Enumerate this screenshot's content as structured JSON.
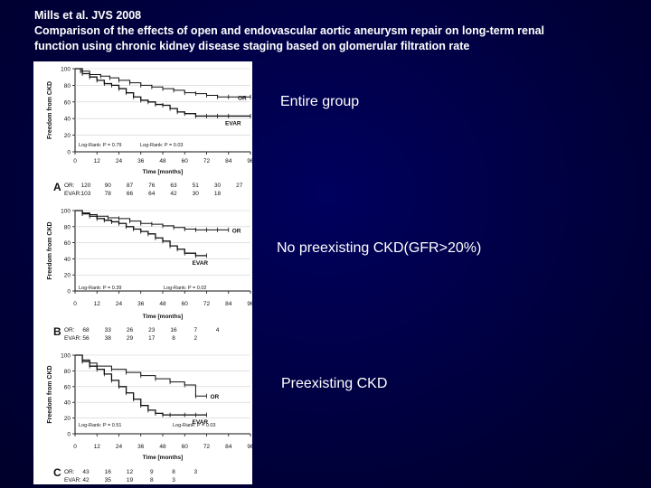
{
  "title_lines": [
    "Mills et al.  JVS 2008",
    "Comparison of the effects of open and endovascular aortic aneurysm repair on long-term renal",
    "function using chronic kidney disease staging based on glomerular filtration rate"
  ],
  "panel_labels": [
    "Entire group",
    "No preexisting CKD(GFR>20%)",
    "Preexisting CKD"
  ],
  "colors": {
    "background": "#000038",
    "text": "#ffffff",
    "figure_bg": "#ffffff",
    "ink": "#111111"
  },
  "chart_data": [
    {
      "type": "line",
      "panel": "A",
      "title": "Entire group",
      "ylabel": "Freedom from CKD",
      "xlabel": "Time [months]",
      "xticks": [
        0,
        12,
        24,
        36,
        48,
        60,
        72,
        84,
        96
      ],
      "yticks": [
        0,
        20,
        40,
        60,
        80,
        100
      ],
      "xlim": [
        0,
        96
      ],
      "ylim": [
        0,
        100
      ],
      "logrank": [
        "Log-Rank: P = 0.79",
        "Log-Rank: P = 0.03"
      ],
      "series": [
        {
          "name": "OR",
          "x": [
            0,
            3,
            8,
            14,
            19,
            24,
            30,
            36,
            42,
            48,
            54,
            60,
            66,
            72,
            78,
            84,
            96
          ],
          "y": [
            100,
            97,
            93,
            91,
            89,
            86,
            83,
            80,
            78,
            76,
            74,
            71,
            70,
            68,
            66,
            66,
            66
          ]
        },
        {
          "name": "EVAR",
          "x": [
            0,
            4,
            8,
            12,
            16,
            20,
            24,
            28,
            32,
            36,
            40,
            44,
            48,
            52,
            56,
            60,
            66,
            72,
            78,
            84,
            96
          ],
          "y": [
            100,
            94,
            90,
            86,
            82,
            80,
            76,
            71,
            66,
            62,
            60,
            57,
            56,
            52,
            48,
            46,
            43,
            43,
            43,
            43,
            43
          ]
        }
      ],
      "risk_table": {
        "OR": [
          "120",
          "90",
          "87",
          "76",
          "63",
          "51",
          "30",
          "27"
        ],
        "EVAR": [
          "103",
          "78",
          "66",
          "64",
          "42",
          "30",
          "18"
        ]
      }
    },
    {
      "type": "line",
      "panel": "B",
      "title": "No preexisting CKD(GFR>20%)",
      "ylabel": "Freedom from CKD",
      "xlabel": "Time [months]",
      "xticks": [
        0,
        12,
        24,
        36,
        48,
        60,
        72,
        84,
        96
      ],
      "yticks": [
        0,
        20,
        40,
        60,
        80,
        100
      ],
      "xlim": [
        0,
        96
      ],
      "ylim": [
        0,
        100
      ],
      "logrank": [
        "Log-Rank: P = 0.39",
        "Log-Rank: P = 0.02"
      ],
      "series": [
        {
          "name": "OR",
          "x": [
            0,
            4,
            8,
            12,
            18,
            24,
            30,
            36,
            42,
            48,
            54,
            60,
            66,
            72,
            78,
            84
          ],
          "y": [
            100,
            97,
            95,
            93,
            91,
            90,
            87,
            84,
            83,
            81,
            79,
            77,
            76,
            76,
            76,
            76
          ]
        },
        {
          "name": "EVAR",
          "x": [
            0,
            4,
            8,
            12,
            16,
            20,
            24,
            28,
            32,
            36,
            40,
            44,
            48,
            52,
            56,
            60,
            66,
            72
          ],
          "y": [
            100,
            96,
            93,
            90,
            88,
            86,
            84,
            80,
            77,
            74,
            71,
            66,
            62,
            56,
            52,
            47,
            44,
            44
          ]
        }
      ],
      "risk_table": {
        "OR": [
          "68",
          "33",
          "26",
          "23",
          "16",
          "7",
          "4"
        ],
        "EVAR": [
          "56",
          "38",
          "29",
          "17",
          "8",
          "2"
        ]
      }
    },
    {
      "type": "line",
      "panel": "C",
      "title": "Preexisting CKD",
      "ylabel": "Freedom from CKD",
      "xlabel": "Time [months]",
      "xticks": [
        0,
        12,
        24,
        36,
        48,
        60,
        72,
        84,
        96
      ],
      "yticks": [
        0,
        20,
        40,
        60,
        80,
        100
      ],
      "xlim": [
        0,
        96
      ],
      "ylim": [
        0,
        100
      ],
      "logrank": [
        "Log-Rank: P = 0.51",
        "Log-Rank: P = 0.03"
      ],
      "series": [
        {
          "name": "OR",
          "x": [
            0,
            4,
            8,
            12,
            20,
            28,
            36,
            44,
            52,
            60,
            66,
            72
          ],
          "y": [
            100,
            94,
            90,
            86,
            82,
            78,
            74,
            70,
            66,
            62,
            48,
            48
          ]
        },
        {
          "name": "EVAR",
          "x": [
            0,
            4,
            8,
            12,
            16,
            20,
            24,
            28,
            32,
            36,
            40,
            44,
            48,
            52,
            60,
            66,
            72
          ],
          "y": [
            100,
            92,
            86,
            82,
            76,
            68,
            60,
            52,
            44,
            36,
            30,
            26,
            24,
            24,
            24,
            24,
            24
          ]
        }
      ],
      "risk_table": {
        "OR": [
          "43",
          "16",
          "12",
          "9",
          "8",
          "3"
        ],
        "EVAR": [
          "42",
          "35",
          "19",
          "8",
          "3"
        ]
      }
    }
  ]
}
